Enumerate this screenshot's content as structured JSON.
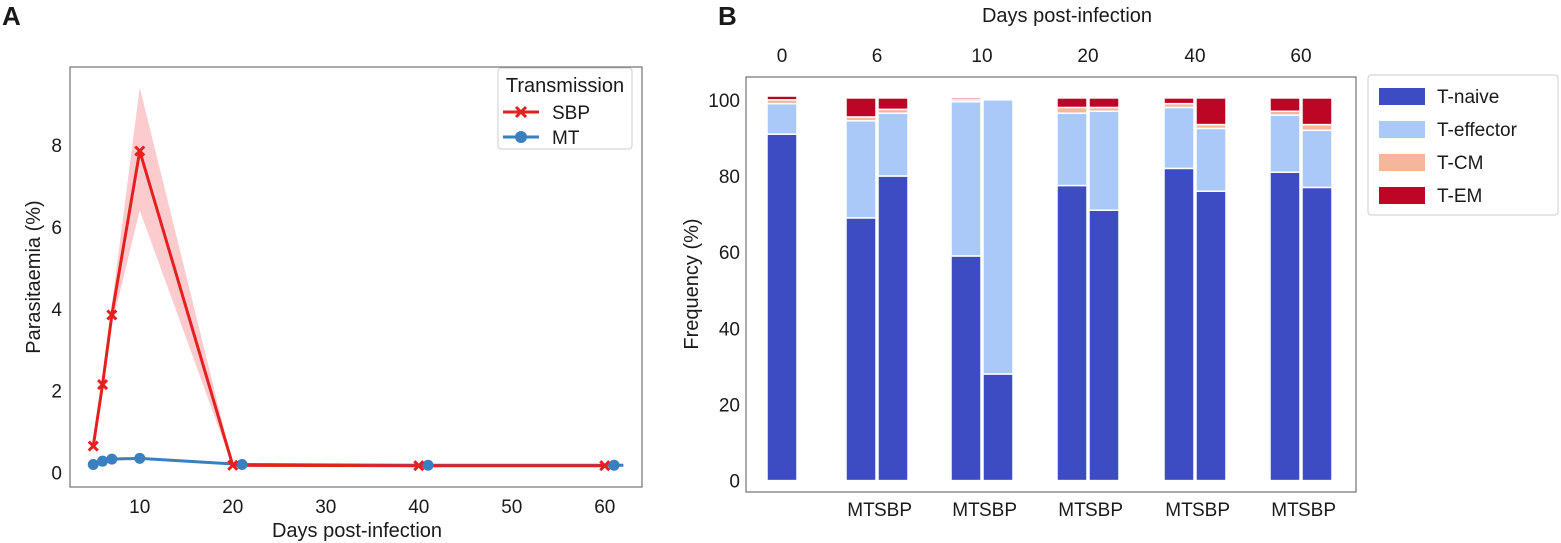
{
  "panel_labels": {
    "a": "A",
    "b": "B"
  },
  "colors": {
    "sbp_line": "#e32121",
    "sbp_band": "#f9b9bc",
    "mt_line": "#3a7fc0",
    "t_naive": "#3d4cc2",
    "t_effector": "#aac8f8",
    "t_cm": "#f5b79b",
    "t_em": "#bd0626"
  },
  "chart_data": [
    {
      "type": "line",
      "title": "",
      "xlabel": "Days post-infection",
      "ylabel": "Parasitaemia (%)",
      "xlim": [
        2.5,
        64
      ],
      "ylim": [
        -0.35,
        9.9
      ],
      "xticks": [
        10,
        20,
        30,
        40,
        50,
        60
      ],
      "yticks": [
        0,
        2,
        4,
        6,
        8
      ],
      "legend": {
        "title": "Transmission",
        "position": "top-right"
      },
      "series": [
        {
          "name": "SBP",
          "marker": "x",
          "x": [
            5,
            6,
            7,
            10,
            20,
            40,
            60
          ],
          "y": [
            0.65,
            2.15,
            3.85,
            7.85,
            0.18,
            0.17,
            0.17
          ],
          "band_low": [
            0.6,
            2.0,
            3.6,
            6.4,
            0.15,
            0.15,
            0.15
          ],
          "band_high": [
            0.7,
            2.3,
            4.1,
            9.4,
            0.2,
            0.2,
            0.2
          ]
        },
        {
          "name": "MT",
          "marker": "o",
          "x": [
            5,
            6,
            7,
            10,
            21,
            41,
            61,
            62
          ],
          "y": [
            0.2,
            0.28,
            0.33,
            0.35,
            0.2,
            0.18,
            0.18,
            0.18
          ]
        }
      ]
    },
    {
      "type": "bar",
      "stacked": true,
      "title": "Days post-infection",
      "xlabel": "",
      "ylabel": "Frequency (%)",
      "ylim": [
        -3,
        106
      ],
      "yticks": [
        0,
        20,
        40,
        60,
        80,
        100
      ],
      "legend": {
        "position": "right"
      },
      "stack_names": [
        "T-naive",
        "T-effector",
        "T-CM",
        "T-EM"
      ],
      "groups": [
        {
          "day": "0",
          "bars": [
            {
              "label": "",
              "values": [
                91,
                8,
                1,
                1
              ]
            }
          ]
        },
        {
          "day": "6",
          "bars": [
            {
              "label": "MT",
              "values": [
                69,
                25.5,
                1,
                5
              ]
            },
            {
              "label": "SBP",
              "values": [
                80,
                16.5,
                1,
                3
              ]
            }
          ]
        },
        {
          "day": "10",
          "bars": [
            {
              "label": "MT",
              "values": [
                59,
                40.5,
                0.5,
                0.5
              ]
            },
            {
              "label": "SBP",
              "values": [
                28,
                72,
                0,
                0
              ]
            }
          ]
        },
        {
          "day": "20",
          "bars": [
            {
              "label": "MT",
              "values": [
                77.5,
                19,
                1.5,
                2.5
              ]
            },
            {
              "label": "SBP",
              "values": [
                71,
                26,
                1,
                2.5
              ]
            }
          ]
        },
        {
          "day": "40",
          "bars": [
            {
              "label": "MT",
              "values": [
                82,
                16,
                1,
                1.5
              ]
            },
            {
              "label": "SBP",
              "values": [
                76,
                16.5,
                1,
                7
              ]
            }
          ]
        },
        {
          "day": "60",
          "bars": [
            {
              "label": "MT",
              "values": [
                81,
                15,
                1,
                3.5
              ]
            },
            {
              "label": "SBP",
              "values": [
                77,
                15,
                1.5,
                7
              ]
            }
          ]
        }
      ]
    }
  ]
}
